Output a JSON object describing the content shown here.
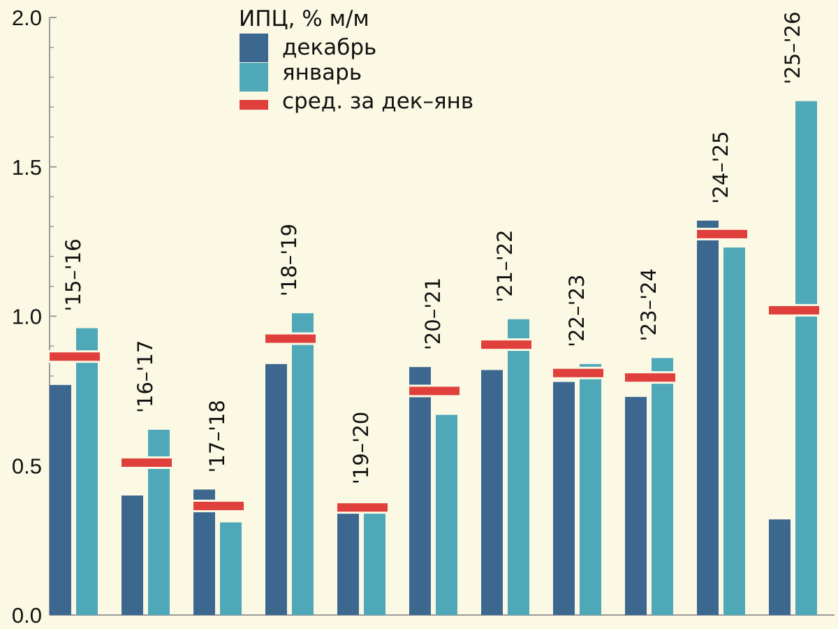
{
  "chart_data": {
    "type": "bar",
    "title": "",
    "xlabel": "",
    "ylabel": "",
    "ylim": [
      0,
      2.0
    ],
    "yticks": [
      "0.0",
      "0.5",
      "1.0",
      "1.5",
      "2.0"
    ],
    "grid": false,
    "legend": {
      "title": "ИПЦ, % м/м",
      "placement": "top-center",
      "items": [
        {
          "label": "декабрь",
          "kind": "bar",
          "color": "#3c6890"
        },
        {
          "label": "январь",
          "kind": "bar",
          "color": "#4ea8b8"
        },
        {
          "label": "сред. за дек–янв",
          "kind": "line",
          "color": "#e0403c"
        }
      ]
    },
    "categories": [
      "'15–'16",
      "'16–'17",
      "'17–'18",
      "'18–'19",
      "'19–'20",
      "'20–'21",
      "'21–'22",
      "'22–'23",
      "'23–'24",
      "'24–'25",
      "'25–'26"
    ],
    "series": [
      {
        "name": "декабрь",
        "color": "#3c6890",
        "values": [
          0.77,
          0.4,
          0.42,
          0.84,
          0.36,
          0.83,
          0.82,
          0.78,
          0.73,
          1.32,
          0.32
        ]
      },
      {
        "name": "январь",
        "color": "#4ea8b8",
        "values": [
          0.96,
          0.62,
          0.31,
          1.01,
          0.36,
          0.67,
          0.99,
          0.84,
          0.86,
          1.23,
          1.72
        ]
      },
      {
        "name": "сред. за дек–янв",
        "color": "#e0403c",
        "values": [
          0.865,
          0.51,
          0.365,
          0.925,
          0.36,
          0.75,
          0.905,
          0.81,
          0.795,
          1.275,
          1.02
        ]
      }
    ]
  },
  "colors": {
    "background": "#fbf8e4",
    "axis": "#9a9a9a"
  }
}
